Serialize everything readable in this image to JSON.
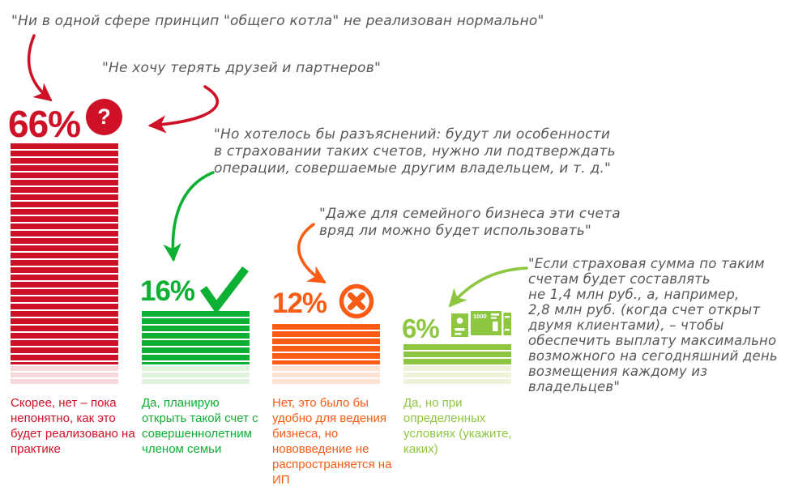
{
  "chart_data": {
    "type": "bar",
    "orientation": "vertical",
    "categories": [
      "Скорее, нет – пока непонятно, как это будет реализовано на практике",
      "Да, планирую открыть такой счет с совершеннолетним членом семьи",
      "Нет, это было бы удобно для ведения бизнеса, но нововведение не распространяется на ИП",
      "Да, но при определенных условиях (укажите, каких)"
    ],
    "values": [
      66,
      16,
      12,
      6
    ],
    "data_labels": [
      "66%",
      "16%",
      "12%",
      "6%"
    ],
    "ylim": [
      0,
      66
    ],
    "grid": "off",
    "legend": "none",
    "bar_colors": [
      "#CF1127",
      "#0CB032",
      "#FA5B15",
      "#8DC63F"
    ]
  },
  "quotes": [
    {
      "text": "\"Ни в одной сфере принцип \"общего котла\" не реализован нормально\""
    },
    {
      "text": "\"Не хочу терять друзей и партнеров\""
    },
    {
      "text": "\"Но хотелось бы разъяснений: будут ли особенности\nв страховании таких счетов, нужно ли подтверждать\nоперации, совершаемые другим владельцем, и т. д.\""
    },
    {
      "text": "\"Даже для семейного бизнеса эти счета\nвряд ли можно будет использовать\""
    },
    {
      "text": "\"Если страховая сумма по таким\nсчетам будет составлять\nне 1,4 млн руб., а, например,\n2,8 млн руб. (когда счет открыт\nдвумя клиентами), – чтобы\nобеспечить выплату максимально\nвозможного на сегодняшний день\nвозмещения каждому из владельцев\""
    }
  ],
  "bars": [
    {
      "percent": "66%",
      "value": 66,
      "icon": "question-mark",
      "label": "Скорее, нет – пока непонятно, как это будет реализовано на практике"
    },
    {
      "percent": "16%",
      "value": 16,
      "icon": "checkmark",
      "label": "Да, планирую открыть такой счет с совершеннолетним членом семьи"
    },
    {
      "percent": "12%",
      "value": 12,
      "icon": "x-circle",
      "label": "Нет, это было бы удобно для ведения бизнеса, но нововведение не распространяется на ИП"
    },
    {
      "percent": "6%",
      "value": 6,
      "icon": "banknote",
      "label": "Да, но при определенных условиях (укажите, каких)"
    }
  ],
  "icons": {
    "question_mark": "?",
    "banknote_value": "1000"
  },
  "colors": {
    "red": "#CF1127",
    "red_pale": "#F7D9DC",
    "green": "#0CB032",
    "green_pale": "#DFF2DC",
    "orange": "#FA5B15",
    "orange_pale": "#FEE3D5",
    "lime": "#8DC63F",
    "lime_pale": "#EDF3D8",
    "quote_gray": "#58585A"
  }
}
